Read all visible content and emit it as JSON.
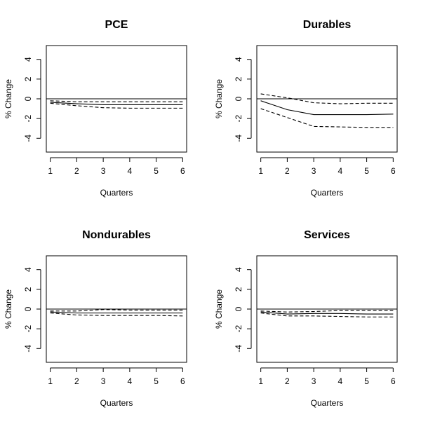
{
  "figure": {
    "xlabel": "Quarters",
    "ylabel": "% Change"
  },
  "chart_data": [
    {
      "type": "line",
      "title": "PCE",
      "xlabel": "Quarters",
      "ylabel": "% Change",
      "x": [
        1,
        2,
        3,
        4,
        5,
        6
      ],
      "xticks": [
        1,
        2,
        3,
        4,
        5,
        6
      ],
      "yticks": [
        -4,
        -2,
        0,
        2,
        4
      ],
      "xlim": [
        0.85,
        6.15
      ],
      "ylim": [
        -5.4,
        5.4
      ],
      "zero_line": true,
      "grid": false,
      "series": [
        {
          "style": "solid",
          "values": [
            -0.35,
            -0.5,
            -0.6,
            -0.6,
            -0.6,
            -0.6
          ]
        },
        {
          "style": "dashed",
          "values": [
            -0.2,
            -0.3,
            -0.3,
            -0.3,
            -0.3,
            -0.3
          ]
        },
        {
          "style": "dashed",
          "values": [
            -0.45,
            -0.7,
            -0.9,
            -0.95,
            -0.95,
            -0.95
          ]
        }
      ]
    },
    {
      "type": "line",
      "title": "Durables",
      "xlabel": "Quarters",
      "ylabel": "% Change",
      "x": [
        1,
        2,
        3,
        4,
        5,
        6
      ],
      "xticks": [
        1,
        2,
        3,
        4,
        5,
        6
      ],
      "yticks": [
        -4,
        -2,
        0,
        2,
        4
      ],
      "xlim": [
        0.85,
        6.15
      ],
      "ylim": [
        -5.4,
        5.4
      ],
      "zero_line": true,
      "grid": false,
      "series": [
        {
          "style": "solid",
          "values": [
            -0.2,
            -1.1,
            -1.6,
            -1.6,
            -1.6,
            -1.55
          ]
        },
        {
          "style": "dashed",
          "values": [
            0.5,
            0.1,
            -0.4,
            -0.5,
            -0.45,
            -0.45
          ]
        },
        {
          "style": "dashed",
          "values": [
            -1.0,
            -1.9,
            -2.8,
            -2.85,
            -2.9,
            -2.9
          ]
        }
      ]
    },
    {
      "type": "line",
      "title": "Nondurables",
      "xlabel": "Quarters",
      "ylabel": "% Change",
      "x": [
        1,
        2,
        3,
        4,
        5,
        6
      ],
      "xticks": [
        1,
        2,
        3,
        4,
        5,
        6
      ],
      "yticks": [
        -4,
        -2,
        0,
        2,
        4
      ],
      "xlim": [
        0.85,
        6.15
      ],
      "ylim": [
        -5.4,
        5.4
      ],
      "zero_line": true,
      "grid": false,
      "series": [
        {
          "style": "solid",
          "values": [
            -0.3,
            -0.4,
            -0.4,
            -0.4,
            -0.4,
            -0.4
          ]
        },
        {
          "style": "dashed",
          "values": [
            -0.2,
            -0.2,
            -0.05,
            -0.1,
            -0.1,
            -0.1
          ]
        },
        {
          "style": "dashed",
          "values": [
            -0.4,
            -0.6,
            -0.65,
            -0.65,
            -0.65,
            -0.7
          ]
        }
      ]
    },
    {
      "type": "line",
      "title": "Services",
      "xlabel": "Quarters",
      "ylabel": "% Change",
      "x": [
        1,
        2,
        3,
        4,
        5,
        6
      ],
      "xticks": [
        1,
        2,
        3,
        4,
        5,
        6
      ],
      "yticks": [
        -4,
        -2,
        0,
        2,
        4
      ],
      "xlim": [
        0.85,
        6.15
      ],
      "ylim": [
        -5.4,
        5.4
      ],
      "zero_line": true,
      "grid": false,
      "series": [
        {
          "style": "solid",
          "values": [
            -0.3,
            -0.5,
            -0.45,
            -0.45,
            -0.5,
            -0.5
          ]
        },
        {
          "style": "dashed",
          "values": [
            -0.2,
            -0.3,
            -0.25,
            -0.15,
            -0.15,
            -0.15
          ]
        },
        {
          "style": "dashed",
          "values": [
            -0.4,
            -0.7,
            -0.7,
            -0.75,
            -0.8,
            -0.8
          ]
        }
      ]
    }
  ]
}
